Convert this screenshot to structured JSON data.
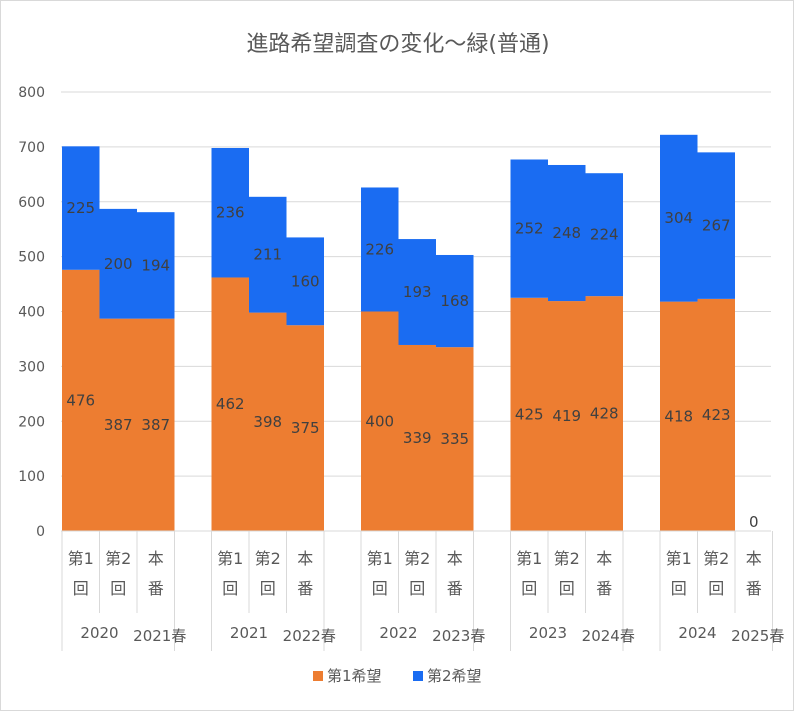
{
  "chart_data": {
    "type": "bar",
    "stacked": true,
    "title": "進路希望調査の変化～緑(普通)",
    "ylim": [
      0,
      800
    ],
    "yticks": [
      0,
      100,
      200,
      300,
      400,
      500,
      600,
      700,
      800
    ],
    "groups": [
      {
        "year": "2020",
        "season": "2021春",
        "categories": [
          "第1回",
          "第2回",
          "本番"
        ]
      },
      {
        "year": "2021",
        "season": "2022春",
        "categories": [
          "第1回",
          "第2回",
          "本番"
        ]
      },
      {
        "year": "2022",
        "season": "2023春",
        "categories": [
          "第1回",
          "第2回",
          "本番"
        ]
      },
      {
        "year": "2023",
        "season": "2024春",
        "categories": [
          "第1回",
          "第2回",
          "本番"
        ]
      },
      {
        "year": "2024",
        "season": "2025春",
        "categories": [
          "第1回",
          "第2回",
          "本番"
        ]
      }
    ],
    "series": [
      {
        "name": "第1希望",
        "color": "#ed7d31",
        "values": [
          476,
          387,
          387,
          462,
          398,
          375,
          400,
          339,
          335,
          425,
          419,
          428,
          418,
          423,
          null
        ]
      },
      {
        "name": "第2希望",
        "color": "#1a6cf2",
        "values": [
          225,
          200,
          194,
          236,
          211,
          160,
          226,
          193,
          168,
          252,
          248,
          224,
          304,
          267,
          null
        ]
      }
    ],
    "zero_label": "0",
    "legend": "bottom"
  }
}
